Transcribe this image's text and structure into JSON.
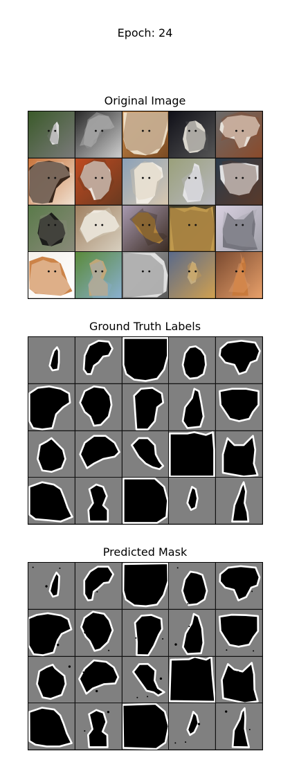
{
  "epoch_title": "Epoch: 24",
  "sections": {
    "original": {
      "title": "Original Image"
    },
    "ground_truth": {
      "title": "Ground Truth Labels"
    },
    "predicted": {
      "title": "Predicted Mask"
    }
  },
  "grid": {
    "rows": 4,
    "cols": 5
  },
  "colors": {
    "mask_background": "#808080",
    "mask_object": "#000000",
    "mask_boundary": "#ffffff"
  },
  "photos": [
    {
      "subject": "cat",
      "palette": [
        "#3b5a2a",
        "#e8e8e8",
        "#7a7a7a"
      ]
    },
    {
      "subject": "dog",
      "palette": [
        "#2a2a2a",
        "#8a8a8a",
        "#cfcfcf"
      ]
    },
    {
      "subject": "dog",
      "palette": [
        "#c98a4a",
        "#f2e6d0",
        "#7a4a22"
      ]
    },
    {
      "subject": "dog",
      "palette": [
        "#101018",
        "#e8e4da",
        "#555555"
      ]
    },
    {
      "subject": "dog",
      "palette": [
        "#6a6a6a",
        "#f0ece4",
        "#8a4a2a"
      ]
    },
    {
      "subject": "dog",
      "palette": [
        "#c8733a",
        "#2a1a10",
        "#f0e0d0"
      ]
    },
    {
      "subject": "dog",
      "palette": [
        "#c04a20",
        "#f4f0ea",
        "#6a3a20"
      ]
    },
    {
      "subject": "dog",
      "palette": [
        "#8aa0b8",
        "#f4f0e8",
        "#d8c8b0"
      ]
    },
    {
      "subject": "cat",
      "palette": [
        "#9aa07a",
        "#e8e8ea",
        "#b8b8c0"
      ]
    },
    {
      "subject": "dog",
      "palette": [
        "#2a3a4a",
        "#f0f0f0",
        "#5a3a2a"
      ]
    },
    {
      "subject": "dog",
      "palette": [
        "#5a7a4a",
        "#151515",
        "#8a8a7a"
      ]
    },
    {
      "subject": "dog",
      "palette": [
        "#a08060",
        "#f4efe6",
        "#d8d0c0"
      ]
    },
    {
      "subject": "dog",
      "palette": [
        "#a89ab0",
        "#b8883a",
        "#3a2a20"
      ]
    },
    {
      "subject": "cat",
      "palette": [
        "#3a3a2a",
        "#c8a050",
        "#7a5a2a"
      ]
    },
    {
      "subject": "cat",
      "palette": [
        "#d8d0e0",
        "#707078",
        "#a0a0a8"
      ]
    },
    {
      "subject": "cat",
      "palette": [
        "#f4f0ea",
        "#c87a3a",
        "#ffffff"
      ]
    },
    {
      "subject": "dog",
      "palette": [
        "#5a8a3a",
        "#c8a878",
        "#8ab0d0"
      ]
    },
    {
      "subject": "cat",
      "palette": [
        "#9a9a9a",
        "#e8e8e8",
        "#5a5a5a"
      ]
    },
    {
      "subject": "cat",
      "palette": [
        "#5a6a8a",
        "#c8b080",
        "#d0a050"
      ]
    },
    {
      "subject": "cat",
      "palette": [
        "#7a4a30",
        "#c8783a",
        "#e8a06a"
      ]
    }
  ]
}
